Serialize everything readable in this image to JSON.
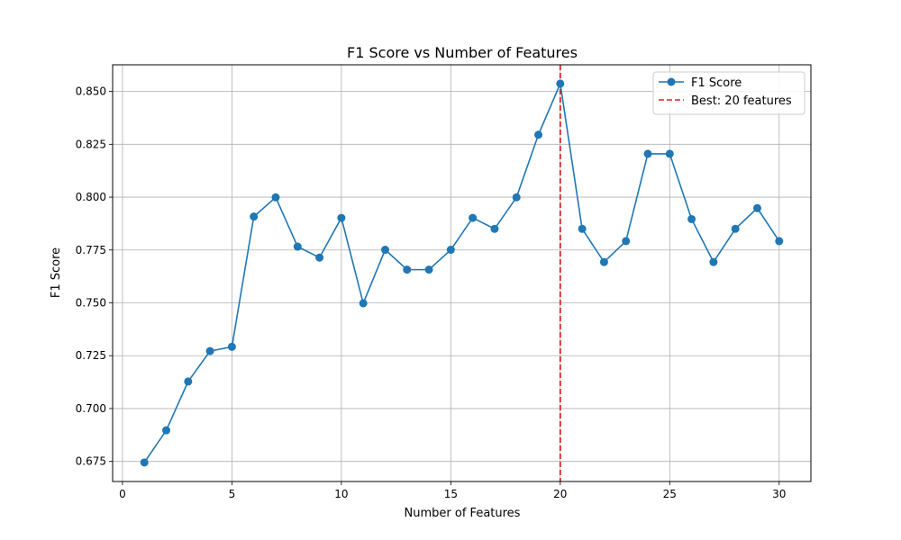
{
  "chart_data": {
    "type": "line",
    "title": "F1 Score vs Number of Features",
    "xlabel": "Number of Features",
    "ylabel": "F1 Score",
    "xlim": [
      -0.45,
      31.45
    ],
    "ylim": [
      0.6655,
      0.8626
    ],
    "xticks": [
      0,
      5,
      10,
      15,
      20,
      25,
      30
    ],
    "yticks": [
      0.675,
      0.7,
      0.725,
      0.75,
      0.775,
      0.8,
      0.825,
      0.85
    ],
    "grid": true,
    "legend_position": "top-right",
    "series": [
      {
        "name": "F1 Score",
        "color": "#1f77b4",
        "x": [
          1,
          2,
          3,
          4,
          5,
          6,
          7,
          8,
          9,
          10,
          11,
          12,
          13,
          14,
          15,
          16,
          17,
          18,
          19,
          20,
          21,
          22,
          23,
          24,
          25,
          26,
          27,
          28,
          29,
          30
        ],
        "y": [
          0.6745,
          0.6897,
          0.7128,
          0.7272,
          0.7292,
          0.7908,
          0.7999,
          0.7766,
          0.7714,
          0.7902,
          0.7498,
          0.7751,
          0.7657,
          0.7657,
          0.7751,
          0.7902,
          0.785,
          0.7999,
          0.8295,
          0.8537,
          0.785,
          0.7693,
          0.7792,
          0.8205,
          0.8205,
          0.7896,
          0.7693,
          0.785,
          0.7948,
          0.7792
        ]
      }
    ],
    "reference_line": {
      "name": "Best: 20 features",
      "x": 20,
      "color": "#d62728",
      "style": "dashed"
    }
  }
}
